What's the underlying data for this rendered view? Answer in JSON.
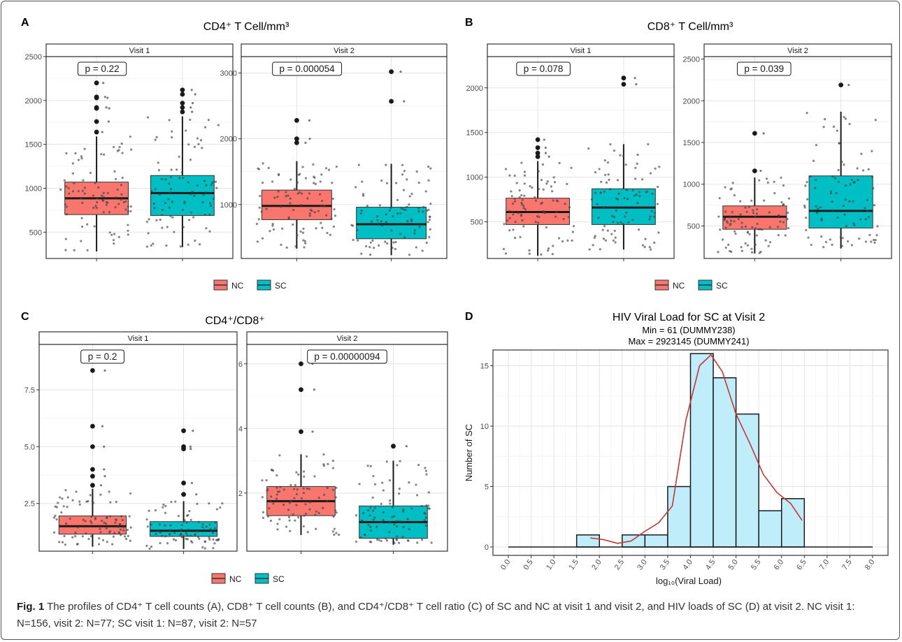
{
  "caption": {
    "label": "Fig. 1",
    "text": "The profiles of CD4⁺ T cell counts (A), CD8⁺ T cell counts (B), and CD4⁺/CD8⁺ T cell ratio (C) of SC and NC at visit 1 and visit 2, and HIV loads of SC (D) at visit 2. NC visit 1: N=156, visit 2: N=77; SC visit 1: N=87, visit 2: N=57"
  },
  "legend": {
    "items": [
      "NC",
      "SC"
    ]
  },
  "colors": {
    "NC": "#F8766D",
    "SC": "#00BFC4",
    "hist_fill": "#BFEEFA",
    "density_line": "#CC3333"
  },
  "chart_data": [
    {
      "id": "A",
      "panel_label": "A",
      "type": "box",
      "title": "CD4⁺ T Cell/mm³",
      "groups": [
        "NC",
        "SC"
      ],
      "facets": [
        {
          "strip": "Visit 1",
          "pvalue_label": "p = 0.22",
          "ylim": [
            200,
            2500
          ],
          "yticks": [
            500,
            1000,
            1500,
            2000,
            2500
          ],
          "boxes": [
            {
              "group": "NC",
              "min": 280,
              "q1": 700,
              "median": 885,
              "q3": 1070,
              "max": 1590,
              "outliers": [
                1640,
                1760,
                1910,
                1920,
                2030,
                2040,
                2200
              ]
            },
            {
              "group": "SC",
              "min": 330,
              "q1": 690,
              "median": 945,
              "q3": 1145,
              "max": 1820,
              "outliers": [
                1870,
                1920,
                1970,
                2070,
                2120
              ]
            }
          ]
        },
        {
          "strip": "Visit 2",
          "pvalue_label": "p = 0.000054",
          "ylim": [
            180,
            3250
          ],
          "yticks": [
            1000,
            2000,
            3000
          ],
          "boxes": [
            {
              "group": "NC",
              "min": 330,
              "q1": 770,
              "median": 980,
              "q3": 1220,
              "max": 1660,
              "outliers": [
                1940,
                2000,
                2280
              ]
            },
            {
              "group": "SC",
              "min": 230,
              "q1": 480,
              "median": 700,
              "q3": 960,
              "max": 1620,
              "outliers": [
                2570,
                3020
              ]
            }
          ]
        }
      ]
    },
    {
      "id": "B",
      "panel_label": "B",
      "type": "box",
      "title": "CD8⁺ T Cell/mm³",
      "groups": [
        "NC",
        "SC"
      ],
      "facets": [
        {
          "strip": "Visit 1",
          "pvalue_label": "p = 0.078",
          "ylim": [
            90,
            2350
          ],
          "yticks": [
            500,
            1000,
            1500,
            2000
          ],
          "boxes": [
            {
              "group": "NC",
              "min": 120,
              "q1": 470,
              "median": 610,
              "q3": 765,
              "max": 1180,
              "outliers": [
                1230,
                1270,
                1330,
                1420
              ]
            },
            {
              "group": "SC",
              "min": 190,
              "q1": 470,
              "median": 660,
              "q3": 870,
              "max": 1370,
              "outliers": [
                2040,
                2110
              ]
            }
          ]
        },
        {
          "strip": "Visit 2",
          "pvalue_label": "p = 0.039",
          "ylim": [
            110,
            2530
          ],
          "yticks": [
            500,
            1000,
            1500,
            2000,
            2500
          ],
          "boxes": [
            {
              "group": "NC",
              "min": 170,
              "q1": 460,
              "median": 610,
              "q3": 740,
              "max": 1080,
              "outliers": [
                1160,
                1610
              ]
            },
            {
              "group": "SC",
              "min": 230,
              "q1": 475,
              "median": 680,
              "q3": 1100,
              "max": 1870,
              "outliers": [
                2190
              ]
            }
          ]
        }
      ]
    },
    {
      "id": "C",
      "panel_label": "C",
      "type": "box",
      "title": "CD4⁺/CD8⁺",
      "groups": [
        "NC",
        "SC"
      ],
      "facets": [
        {
          "strip": "Visit 1",
          "pvalue_label": "p = 0.2",
          "ylim": [
            0.4,
            9.5
          ],
          "yticks": [
            2.5,
            5.0,
            7.5
          ],
          "ytick_labels": [
            "2.5",
            "5.0",
            "7.5"
          ],
          "boxes": [
            {
              "group": "NC",
              "min": 0.6,
              "q1": 1.15,
              "median": 1.5,
              "q3": 1.95,
              "max": 3.15,
              "outliers": [
                3.3,
                3.7,
                4.0,
                5.0,
                5.9,
                8.35
              ]
            },
            {
              "group": "SC",
              "min": 0.5,
              "q1": 1.05,
              "median": 1.3,
              "q3": 1.7,
              "max": 2.6,
              "outliers": [
                2.9,
                3.4,
                4.9,
                5.0,
                5.7
              ]
            }
          ]
        },
        {
          "strip": "Visit 2",
          "pvalue_label": "p = 0.00000094",
          "ylim": [
            0.2,
            6.6
          ],
          "yticks": [
            2,
            4,
            6
          ],
          "boxes": [
            {
              "group": "NC",
              "min": 0.7,
              "q1": 1.3,
              "median": 1.75,
              "q3": 2.2,
              "max": 3.2,
              "outliers": [
                3.9,
                5.2,
                6.0
              ]
            },
            {
              "group": "SC",
              "min": 0.4,
              "q1": 0.6,
              "median": 1.1,
              "q3": 1.6,
              "max": 3.0,
              "outliers": [
                3.45
              ]
            }
          ]
        }
      ]
    },
    {
      "id": "D",
      "panel_label": "D",
      "type": "bar",
      "title": "HIV Viral Load for SC at Visit 2",
      "subtitle_lines": [
        "Min = 61 (DUMMY238)",
        "Max = 2923145 (DUMMY241)"
      ],
      "xlabel": "log₁₀(Viral Load)",
      "ylabel": "Number of SC",
      "xlim": [
        0,
        8
      ],
      "ylim": [
        0,
        16.3
      ],
      "xticks": [
        "0.0",
        "0.5",
        "1.0",
        "1.5",
        "2.0",
        "2.5",
        "3.0",
        "3.5",
        "4.0",
        "4.5",
        "5.0",
        "5.5",
        "6.0",
        "6.5",
        "7.0",
        "7.5",
        "8.0"
      ],
      "yticks": [
        0,
        5,
        10,
        15
      ],
      "bin_width": 0.5,
      "bins": [
        {
          "start": 0.0,
          "count": 0
        },
        {
          "start": 0.5,
          "count": 0
        },
        {
          "start": 1.0,
          "count": 0
        },
        {
          "start": 1.5,
          "count": 1
        },
        {
          "start": 2.0,
          "count": 0
        },
        {
          "start": 2.5,
          "count": 1
        },
        {
          "start": 3.0,
          "count": 1
        },
        {
          "start": 3.5,
          "count": 5
        },
        {
          "start": 4.0,
          "count": 16
        },
        {
          "start": 4.5,
          "count": 14
        },
        {
          "start": 5.0,
          "count": 11
        },
        {
          "start": 5.5,
          "count": 3
        },
        {
          "start": 6.0,
          "count": 4
        },
        {
          "start": 6.5,
          "count": 0
        },
        {
          "start": 7.0,
          "count": 0
        },
        {
          "start": 7.5,
          "count": 0
        }
      ],
      "density_curve": [
        [
          1.8,
          0.75
        ],
        [
          2.1,
          0.6
        ],
        [
          2.4,
          0.3
        ],
        [
          2.7,
          0.5
        ],
        [
          3.0,
          1.3
        ],
        [
          3.3,
          2.0
        ],
        [
          3.6,
          3.4
        ],
        [
          3.9,
          10.5
        ],
        [
          4.2,
          15.0
        ],
        [
          4.45,
          15.9
        ],
        [
          4.7,
          14.5
        ],
        [
          5.0,
          11.0
        ],
        [
          5.3,
          8.6
        ],
        [
          5.6,
          6.0
        ],
        [
          5.9,
          4.5
        ],
        [
          6.2,
          3.6
        ],
        [
          6.45,
          2.2
        ]
      ]
    }
  ]
}
